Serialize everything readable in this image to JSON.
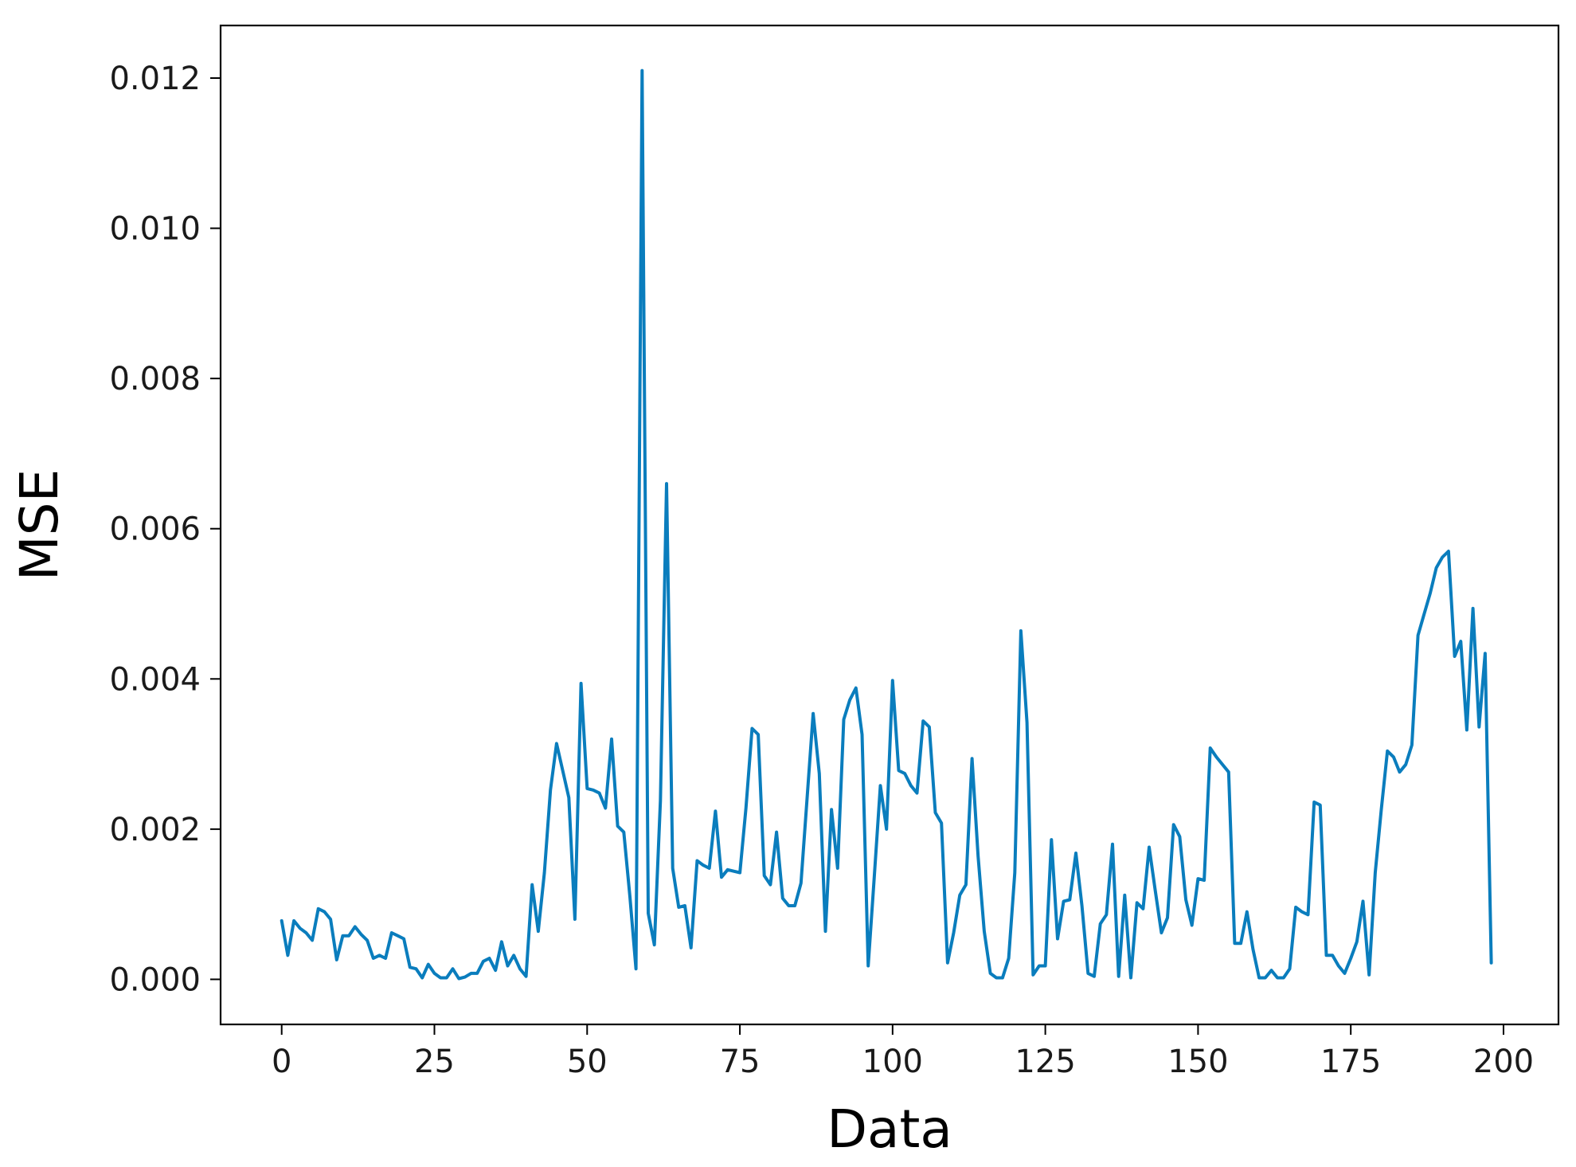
{
  "chart_data": {
    "type": "line",
    "title": "",
    "xlabel": "Data",
    "ylabel": "MSE",
    "xlim": [
      -10,
      209
    ],
    "ylim": [
      -0.0006,
      0.0127
    ],
    "x_ticks": [
      0,
      25,
      50,
      75,
      100,
      125,
      150,
      175,
      200
    ],
    "x_tick_labels": [
      "0",
      "25",
      "50",
      "75",
      "100",
      "125",
      "150",
      "175",
      "200"
    ],
    "y_ticks": [
      0.0,
      0.002,
      0.004,
      0.006,
      0.008,
      0.01,
      0.012
    ],
    "y_tick_labels": [
      "0.000",
      "0.002",
      "0.004",
      "0.006",
      "0.008",
      "0.010",
      "0.012"
    ],
    "grid": false,
    "legend": "none",
    "colors": {
      "line": "#0a7dbd",
      "axes": "#000000"
    },
    "series": [
      {
        "x": [
          0,
          1,
          2,
          3,
          4,
          5,
          6,
          7,
          8,
          9,
          10,
          11,
          12,
          13,
          14,
          15,
          16,
          17,
          18,
          19,
          20,
          21,
          22,
          23,
          24,
          25,
          26,
          27,
          28,
          29,
          30,
          31,
          32,
          33,
          34,
          35,
          36,
          37,
          38,
          39,
          40,
          41,
          42,
          43,
          44,
          45,
          46,
          47,
          48,
          49,
          50,
          51,
          52,
          53,
          54,
          55,
          56,
          57,
          58,
          59,
          60,
          61,
          62,
          63,
          64,
          65,
          66,
          67,
          68,
          69,
          70,
          71,
          72,
          73,
          74,
          75,
          76,
          77,
          78,
          79,
          80,
          81,
          82,
          83,
          84,
          85,
          86,
          87,
          88,
          89,
          90,
          91,
          92,
          93,
          94,
          95,
          96,
          97,
          98,
          99,
          100,
          101,
          102,
          103,
          104,
          105,
          106,
          107,
          108,
          109,
          110,
          111,
          112,
          113,
          114,
          115,
          116,
          117,
          118,
          119,
          120,
          121,
          122,
          123,
          124,
          125,
          126,
          127,
          128,
          129,
          130,
          131,
          132,
          133,
          134,
          135,
          136,
          137,
          138,
          139,
          140,
          141,
          142,
          143,
          144,
          145,
          146,
          147,
          148,
          149,
          150,
          151,
          152,
          153,
          154,
          155,
          156,
          157,
          158,
          159,
          160,
          161,
          162,
          163,
          164,
          165,
          166,
          167,
          168,
          169,
          170,
          171,
          172,
          173,
          174,
          175,
          176,
          177,
          178,
          179,
          180,
          181,
          182,
          183,
          184,
          185,
          186,
          187,
          188,
          189,
          190,
          191,
          192,
          193,
          194,
          195,
          196,
          197,
          198
        ],
        "y": [
          0.00078,
          0.00032,
          0.00078,
          0.00068,
          0.00062,
          0.00052,
          0.00094,
          0.0009,
          0.0008,
          0.00026,
          0.00058,
          0.00058,
          0.0007,
          0.0006,
          0.00052,
          0.00028,
          0.00032,
          0.00028,
          0.00062,
          0.00058,
          0.00054,
          0.00016,
          0.00014,
          2e-05,
          0.0002,
          8e-05,
          2e-05,
          2e-05,
          0.00014,
          1e-05,
          3e-05,
          8e-05,
          8e-05,
          0.00024,
          0.00028,
          0.00012,
          0.0005,
          0.00018,
          0.00032,
          0.00014,
          4e-05,
          0.00126,
          0.00064,
          0.00142,
          0.00252,
          0.00314,
          0.00278,
          0.00242,
          0.0008,
          0.00394,
          0.00254,
          0.00252,
          0.00248,
          0.00228,
          0.0032,
          0.00204,
          0.00196,
          0.0011,
          0.00014,
          0.0121,
          0.00088,
          0.00046,
          0.00238,
          0.0066,
          0.00148,
          0.00096,
          0.00098,
          0.00042,
          0.00158,
          0.00152,
          0.00148,
          0.00224,
          0.00136,
          0.00146,
          0.00144,
          0.00142,
          0.00228,
          0.00334,
          0.00326,
          0.00138,
          0.00126,
          0.00196,
          0.00108,
          0.00098,
          0.00098,
          0.00128,
          0.0024,
          0.00354,
          0.00274,
          0.00064,
          0.00226,
          0.00148,
          0.00346,
          0.00372,
          0.00388,
          0.00326,
          0.00018,
          0.00136,
          0.00258,
          0.002,
          0.00398,
          0.00278,
          0.00274,
          0.00258,
          0.00248,
          0.00344,
          0.00336,
          0.00222,
          0.00208,
          0.00022,
          0.00062,
          0.00112,
          0.00126,
          0.00294,
          0.00164,
          0.00064,
          8e-05,
          2e-05,
          2e-05,
          0.00028,
          0.00142,
          0.00464,
          0.00342,
          6e-05,
          0.00018,
          0.00018,
          0.00186,
          0.00054,
          0.00104,
          0.00106,
          0.00168,
          0.00098,
          8e-05,
          4e-05,
          0.00074,
          0.00086,
          0.0018,
          4e-05,
          0.00112,
          2e-05,
          0.00102,
          0.00094,
          0.00176,
          0.00118,
          0.00062,
          0.00082,
          0.00206,
          0.0019,
          0.00106,
          0.00072,
          0.00134,
          0.00132,
          0.00308,
          0.00296,
          0.00286,
          0.00276,
          0.00048,
          0.00048,
          0.0009,
          0.0004,
          2e-05,
          2e-05,
          0.00012,
          2e-05,
          2e-05,
          0.00014,
          0.00096,
          0.0009,
          0.00086,
          0.00236,
          0.00232,
          0.00032,
          0.00032,
          0.00018,
          8e-05,
          0.00028,
          0.0005,
          0.00104,
          6e-05,
          0.00142,
          0.00226,
          0.00304,
          0.00296,
          0.00276,
          0.00286,
          0.00312,
          0.00458,
          0.00486,
          0.00514,
          0.00548,
          0.00562,
          0.0057,
          0.0043,
          0.0045,
          0.00332,
          0.00494,
          0.00336,
          0.00434,
          0.00022
        ]
      }
    ]
  }
}
